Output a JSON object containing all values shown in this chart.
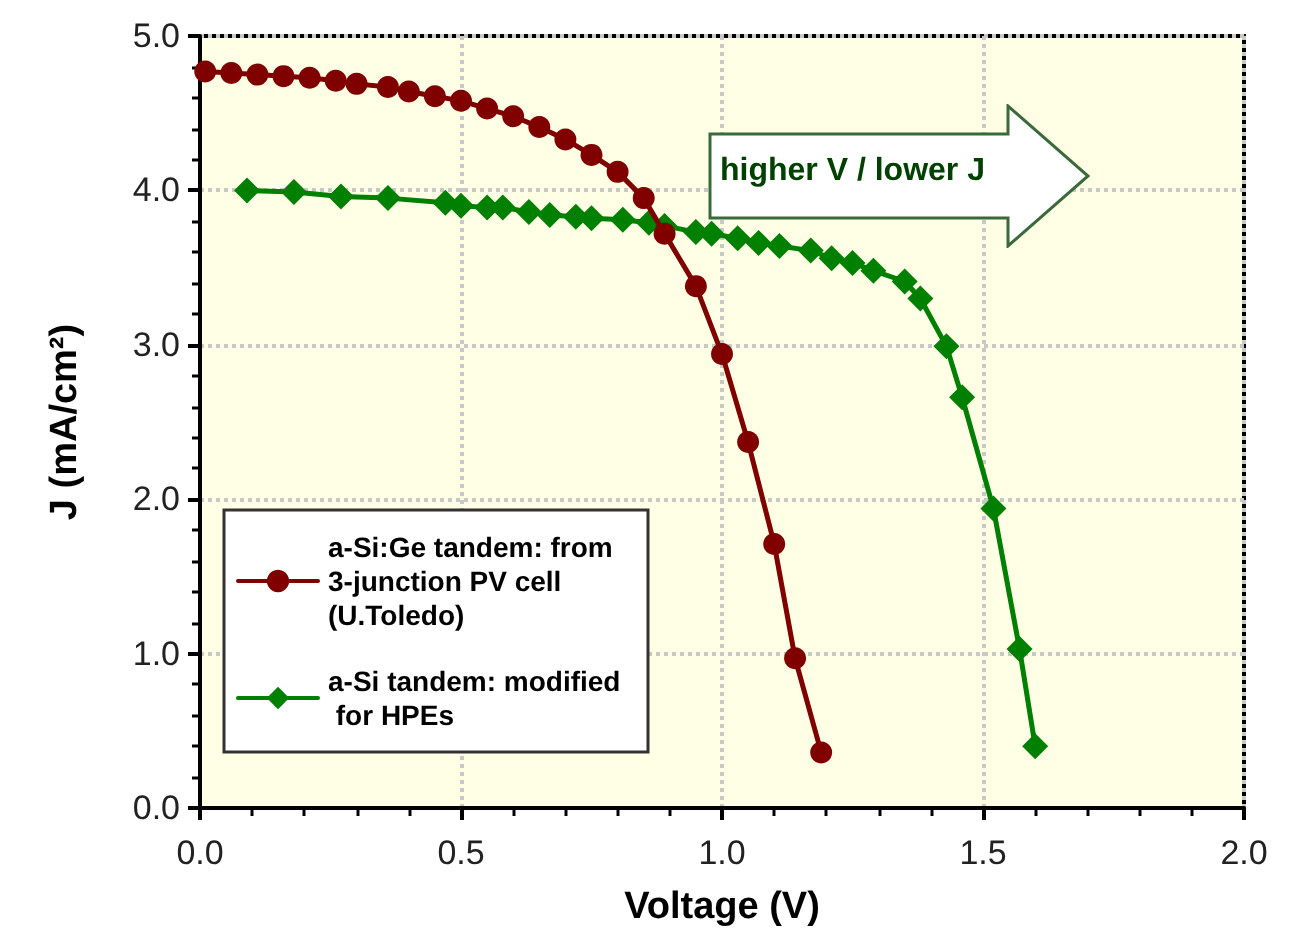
{
  "chart_data": {
    "type": "line",
    "xlabel": "Voltage (V)",
    "ylabel": "J (mA/cm²)",
    "xlim": [
      0,
      2
    ],
    "ylim": [
      0,
      5
    ],
    "xticks": [
      {
        "value": 0,
        "label": "0.0"
      },
      {
        "value": 0.5,
        "label": "0.5"
      },
      {
        "value": 1,
        "label": "1.0"
      },
      {
        "value": 1.5,
        "label": "1.5"
      },
      {
        "value": 2,
        "label": "2.0"
      }
    ],
    "yticks": [
      {
        "value": 0,
        "label": "0.0"
      },
      {
        "value": 1,
        "label": "1.0"
      },
      {
        "value": 2,
        "label": "2.0"
      },
      {
        "value": 3,
        "label": "3.0"
      },
      {
        "value": 4,
        "label": "4.0"
      },
      {
        "value": 5,
        "label": "5.0"
      }
    ],
    "grid": true,
    "legend": "bottom left",
    "line_style": "solid",
    "annotations": [
      "higher V / lower J"
    ],
    "series": [
      {
        "name": "a-Si:Ge tandem: from 3-junction PV cell (U.Toledo)",
        "color": "#800000",
        "marker": "circle",
        "x": [
          0.01,
          0.06,
          0.11,
          0.16,
          0.21,
          0.26,
          0.3,
          0.36,
          0.4,
          0.45,
          0.5,
          0.55,
          0.6,
          0.65,
          0.7,
          0.75,
          0.8,
          0.85,
          0.89,
          0.95,
          1.0,
          1.05,
          1.1,
          1.14,
          1.19
        ],
        "values": [
          4.77,
          4.76,
          4.75,
          4.74,
          4.73,
          4.71,
          4.69,
          4.67,
          4.64,
          4.61,
          4.58,
          4.53,
          4.48,
          4.41,
          4.33,
          4.23,
          4.12,
          3.95,
          3.72,
          3.38,
          2.94,
          2.37,
          1.71,
          0.97,
          0.36
        ]
      },
      {
        "name": "a-Si tandem: modified for HPEs",
        "color": "#008000",
        "marker": "diamond",
        "x": [
          0.09,
          0.18,
          0.27,
          0.36,
          0.47,
          0.5,
          0.55,
          0.58,
          0.63,
          0.67,
          0.72,
          0.75,
          0.81,
          0.86,
          0.89,
          0.95,
          0.98,
          1.03,
          1.07,
          1.11,
          1.17,
          1.21,
          1.25,
          1.29,
          1.35,
          1.38,
          1.43,
          1.46,
          1.52,
          1.57,
          1.6
        ],
        "values": [
          4.0,
          3.99,
          3.96,
          3.95,
          3.92,
          3.9,
          3.89,
          3.89,
          3.86,
          3.84,
          3.83,
          3.82,
          3.81,
          3.79,
          3.77,
          3.73,
          3.72,
          3.69,
          3.66,
          3.64,
          3.61,
          3.56,
          3.53,
          3.48,
          3.41,
          3.3,
          2.99,
          2.66,
          1.94,
          1.03,
          0.4
        ]
      }
    ]
  }
}
